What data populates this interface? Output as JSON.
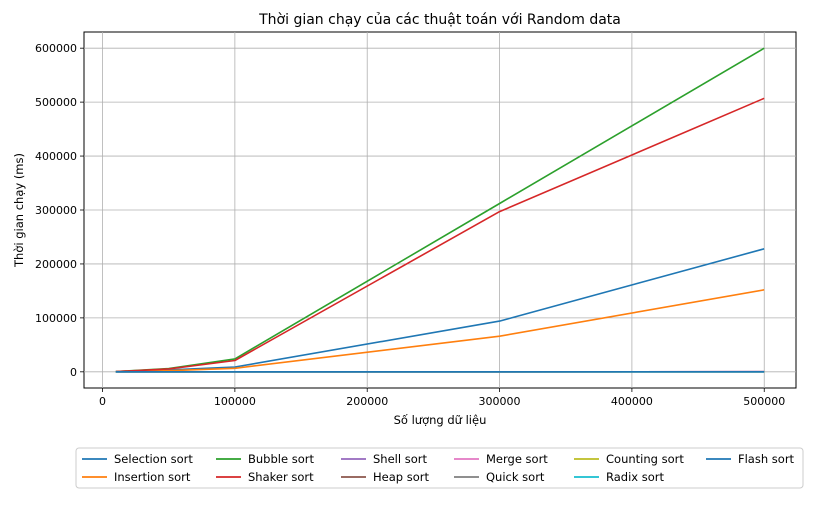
{
  "chart_data": {
    "type": "line",
    "title": "Thời gian chạy của các thuật toán với Random data",
    "xlabel": "Số lượng dữ liệu",
    "ylabel": "Thời gian chạy (ms)",
    "x": [
      10000,
      50000,
      100000,
      300000,
      500000
    ],
    "xlim": [
      -14000,
      524000
    ],
    "ylim": [
      -30000,
      630000
    ],
    "xticks": [
      0,
      100000,
      200000,
      300000,
      400000,
      500000
    ],
    "yticks": [
      0,
      100000,
      200000,
      300000,
      400000,
      500000,
      600000
    ],
    "grid": true,
    "legend_position": "bottom",
    "series": [
      {
        "name": "Selection sort",
        "color": "#1f77b4",
        "values": [
          300,
          3500,
          9000,
          94000,
          228000
        ]
      },
      {
        "name": "Insertion sort",
        "color": "#ff7f0e",
        "values": [
          150,
          2000,
          6500,
          66000,
          152000
        ]
      },
      {
        "name": "Bubble sort",
        "color": "#2ca02c",
        "values": [
          500,
          6000,
          24000,
          312000,
          600000
        ]
      },
      {
        "name": "Shaker sort",
        "color": "#d62728",
        "values": [
          450,
          5500,
          21000,
          297000,
          507000
        ]
      },
      {
        "name": "Shell sort",
        "color": "#9467bd",
        "values": [
          2,
          10,
          25,
          80,
          150
        ]
      },
      {
        "name": "Heap sort",
        "color": "#8c564b",
        "values": [
          3,
          15,
          35,
          110,
          200
        ]
      },
      {
        "name": "Merge sort",
        "color": "#e377c2",
        "values": [
          3,
          15,
          30,
          100,
          180
        ]
      },
      {
        "name": "Quick sort",
        "color": "#7f7f7f",
        "values": [
          1,
          5,
          12,
          40,
          70
        ]
      },
      {
        "name": "Counting sort",
        "color": "#bcbd22",
        "values": [
          0,
          1,
          2,
          5,
          8
        ]
      },
      {
        "name": "Radix sort",
        "color": "#17becf",
        "values": [
          1,
          4,
          8,
          25,
          40
        ]
      },
      {
        "name": "Flash sort",
        "color": "#1f77b4",
        "values": [
          0,
          1,
          3,
          8,
          15
        ]
      }
    ]
  }
}
